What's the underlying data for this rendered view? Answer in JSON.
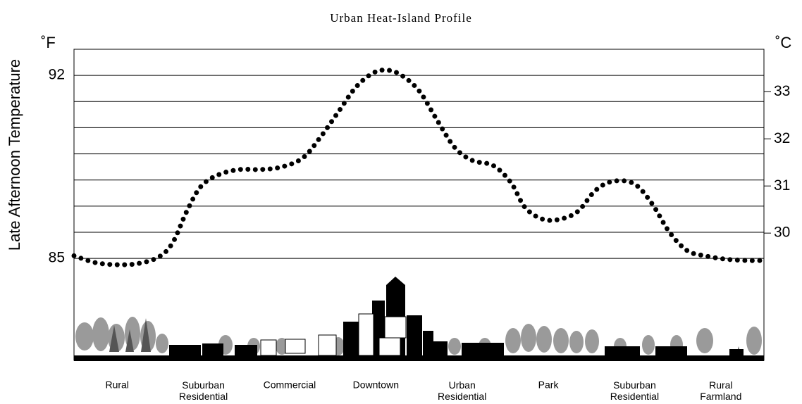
{
  "chart_data": {
    "type": "line",
    "title": "Urban Heat-Island Profile",
    "y_label": "Late Afternoon Temperature",
    "y_unit": "˚F",
    "y2_unit": "˚C",
    "categories": [
      "Rural",
      "Suburban Residential",
      "Commercial",
      "Downtown",
      "Urban Residential",
      "Park",
      "Suburban Residential",
      "Rural Farmland"
    ],
    "xlim": [
      0,
      979
    ],
    "x": [
      0,
      30,
      60,
      90,
      120,
      140,
      160,
      180,
      205,
      235,
      265,
      295,
      325,
      350,
      375,
      400,
      425,
      445,
      465,
      490,
      515,
      540,
      565,
      595,
      620,
      640,
      665,
      690,
      715,
      740,
      765,
      795,
      820,
      845,
      870,
      895,
      925,
      955,
      979
    ],
    "series": [
      {
        "name": "Late Afternoon Temperature",
        "color": "#000000",
        "values": [
          85.1,
          84.84,
          84.76,
          84.8,
          85.05,
          85.6,
          86.8,
          87.75,
          88.2,
          88.4,
          88.4,
          88.5,
          88.85,
          89.65,
          90.6,
          91.55,
          92.1,
          92.2,
          92.0,
          91.4,
          90.3,
          89.25,
          88.75,
          88.55,
          87.9,
          86.95,
          86.5,
          86.5,
          86.8,
          87.6,
          87.95,
          87.85,
          87.1,
          86.0,
          85.3,
          85.1,
          84.97,
          84.92,
          84.92
        ]
      }
    ],
    "ylim": [
      81.1,
      93
    ],
    "yticks": [
      85,
      92
    ],
    "gridlines": [
      85,
      86,
      87,
      88,
      89,
      90,
      91,
      92
    ],
    "y2lim": [
      27.3,
      33.9
    ],
    "y2ticks": [
      30,
      31,
      32,
      33
    ],
    "grid": true
  }
}
